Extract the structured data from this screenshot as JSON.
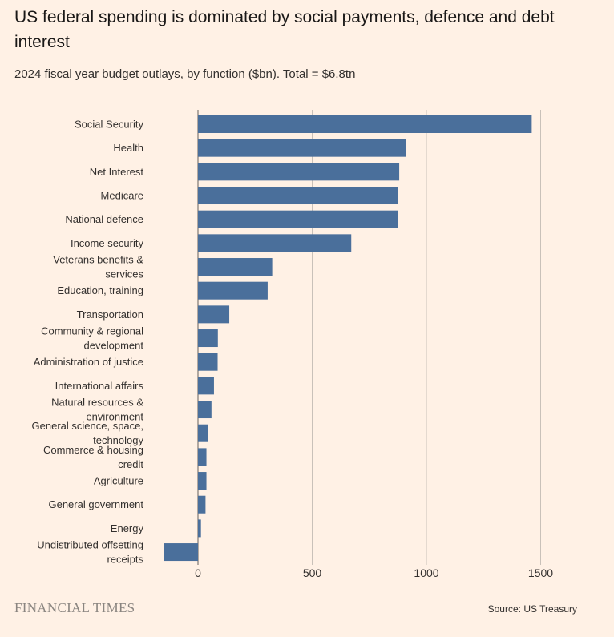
{
  "header": {
    "title": "US federal spending is dominated by social payments, defence and debt interest",
    "subtitle": "2024 fiscal year budget outlays, by function ($bn). Total = $6.8tn"
  },
  "footer": {
    "brand": "FINANCIAL TIMES",
    "source": "Source: US Treasury"
  },
  "colors": {
    "background": "#fff1e5",
    "bar": "#4a6f9b",
    "gridline": "#c9c1b9"
  },
  "chart_data": {
    "type": "bar",
    "orientation": "horizontal",
    "categories": [
      [
        "Social Security"
      ],
      [
        "Health"
      ],
      [
        "Net Interest"
      ],
      [
        "Medicare"
      ],
      [
        "National defence"
      ],
      [
        "Income security"
      ],
      [
        "Veterans benefits &",
        "services"
      ],
      [
        "Education, training"
      ],
      [
        "Transportation"
      ],
      [
        "Community & regional",
        "development"
      ],
      [
        "Administration of justice"
      ],
      [
        "International affairs"
      ],
      [
        "Natural resources &",
        "environment"
      ],
      [
        "General science, space,",
        "technology"
      ],
      [
        "Commerce & housing",
        "credit"
      ],
      [
        "Agriculture"
      ],
      [
        "General government"
      ],
      [
        "Energy"
      ],
      [
        "Undistributed offsetting",
        "receipts"
      ]
    ],
    "values": [
      1461,
      912,
      881,
      874,
      874,
      671,
      325,
      305,
      137,
      87,
      86,
      70,
      59,
      45,
      37,
      37,
      33,
      13,
      -148
    ],
    "xlim": [
      -148,
      1500
    ],
    "xticks": [
      0,
      500,
      1000,
      1500
    ],
    "grid": true
  }
}
